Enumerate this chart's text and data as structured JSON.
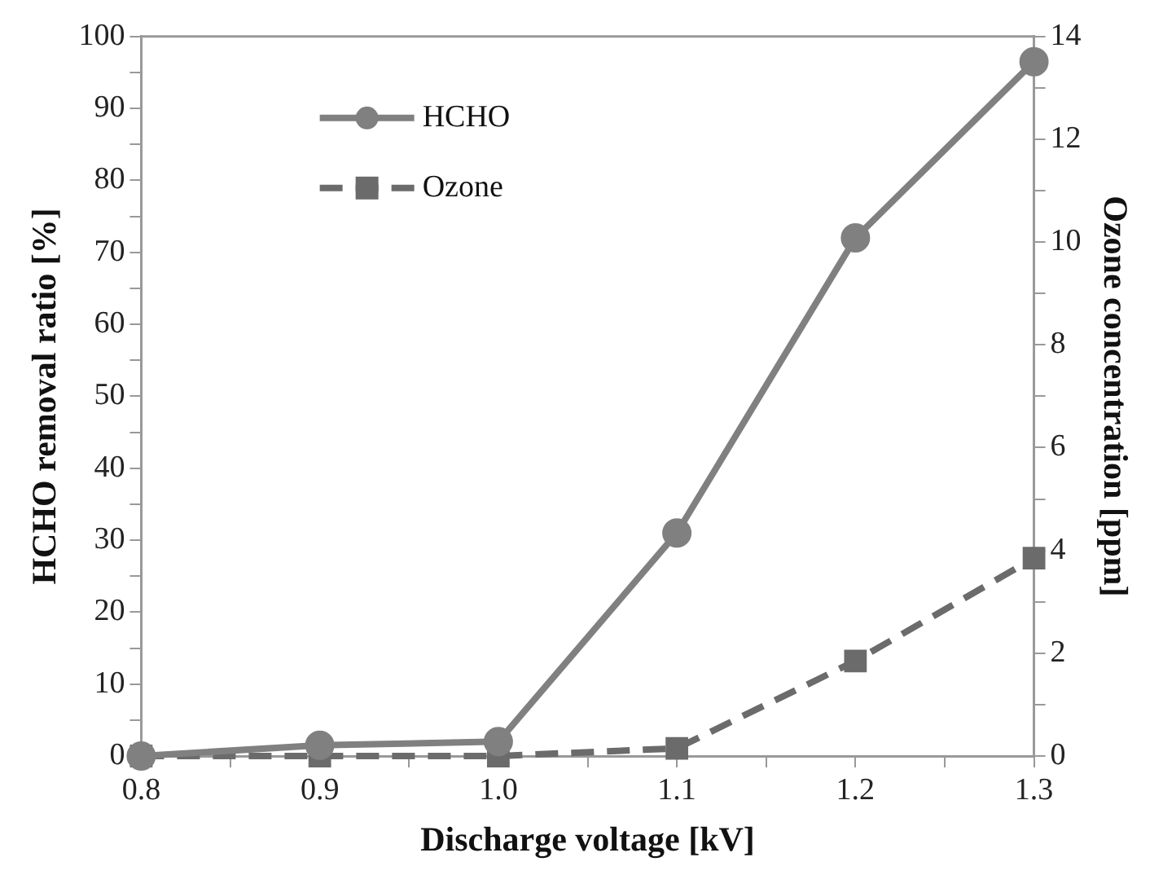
{
  "chart_data": {
    "type": "line",
    "xlabel": "Discharge voltage [kV]",
    "ylabel": "HCHO removal ratio [%]",
    "y2label": "Ozone concentration [ppm]",
    "x": [
      0.8,
      0.9,
      1.0,
      1.1,
      1.2,
      1.3
    ],
    "series": [
      {
        "name": "HCHO",
        "color": "#808080",
        "values": [
          0,
          1.5,
          2,
          31,
          72,
          96.5
        ],
        "marker": "circle",
        "line_style": "solid"
      },
      {
        "name": "Ozone",
        "color": "#6b6b6b",
        "values": [
          0,
          0,
          0,
          0.15,
          1.85,
          3.85
        ],
        "marker": "square",
        "line_style": "dashed",
        "axis": "y2"
      }
    ],
    "xlim": [
      0.8,
      1.3
    ],
    "xticks": [
      0.8,
      {
        "value": 0.85,
        "label": null
      },
      0.9,
      {
        "value": 0.95,
        "label": null
      },
      {
        "value": 1,
        "label": "1.0"
      },
      {
        "value": 1.05,
        "label": null
      },
      1.1,
      {
        "value": 1.15,
        "label": null
      },
      1.2,
      {
        "value": 1.25,
        "label": null
      },
      1.3
    ],
    "ylim": [
      0,
      100
    ],
    "yticks": [
      0,
      {
        "value": 5,
        "label": null
      },
      10,
      {
        "value": 15,
        "label": null
      },
      20,
      {
        "value": 25,
        "label": null
      },
      30,
      {
        "value": 35,
        "label": null
      },
      40,
      {
        "value": 45,
        "label": null
      },
      50,
      {
        "value": 55,
        "label": null
      },
      60,
      {
        "value": 65,
        "label": null
      },
      70,
      {
        "value": 75,
        "label": null
      },
      80,
      {
        "value": 85,
        "label": null
      },
      90,
      {
        "value": 95,
        "label": null
      },
      100
    ],
    "y2lim": [
      0,
      14
    ],
    "y2ticks": [
      0,
      {
        "value": 1,
        "label": null
      },
      2,
      {
        "value": 3,
        "label": null
      },
      4,
      {
        "value": 5,
        "label": null
      },
      6,
      {
        "value": 7,
        "label": null
      },
      8,
      {
        "value": 9,
        "label": null
      },
      10,
      {
        "value": 11,
        "label": null
      },
      12,
      {
        "value": 13,
        "label": null
      },
      14
    ],
    "grid": false,
    "legend": "top left"
  }
}
